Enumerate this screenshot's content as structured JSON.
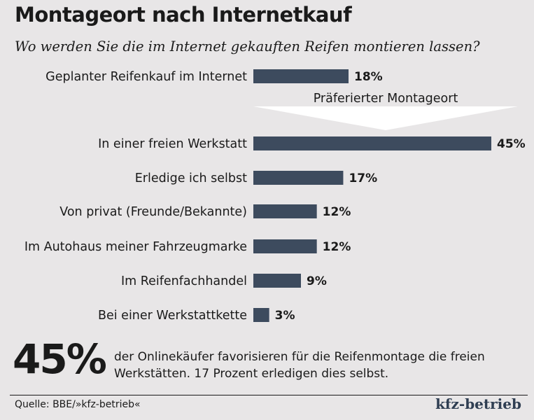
{
  "header": {
    "title": "Montageort nach Internetkauf",
    "subtitle": "Wo werden Sie die im Internet gekauften Reifen montieren lassen?"
  },
  "chart_data": {
    "type": "bar",
    "orientation": "horizontal",
    "categories": [
      "Geplanter Reifenkauf im Internet",
      "In einer freien Werkstatt",
      "Erledige ich selbst",
      "Von privat (Freunde/Bekannte)",
      "Im Autohaus meiner Fahrzeugmarke",
      "Im Reifenfachhandel",
      "Bei einer Werkstattkette"
    ],
    "values": [
      18,
      45,
      17,
      12,
      12,
      9,
      3
    ],
    "value_labels": [
      "18%",
      "45%",
      "17%",
      "12%",
      "12%",
      "9%",
      "3%"
    ],
    "unit": "%",
    "annotation": "Präferierter Montageort",
    "bar_color": "#3d4b5e",
    "grid": false,
    "legend": "none"
  },
  "highlight": {
    "number": "45%",
    "text": "der Onlinekäufer favorisieren für die Reifenmontage die freien Werkstätten. 17 Prozent erledigen dies selbst."
  },
  "footer": {
    "source": "Quelle: BBE/»kfz-betrieb«",
    "brand": "kfz-betrieb"
  },
  "colors": {
    "background": "#e8e6e7",
    "bar": "#3d4b5e",
    "text": "#1a1a1a",
    "brand": "#2f3e52"
  }
}
